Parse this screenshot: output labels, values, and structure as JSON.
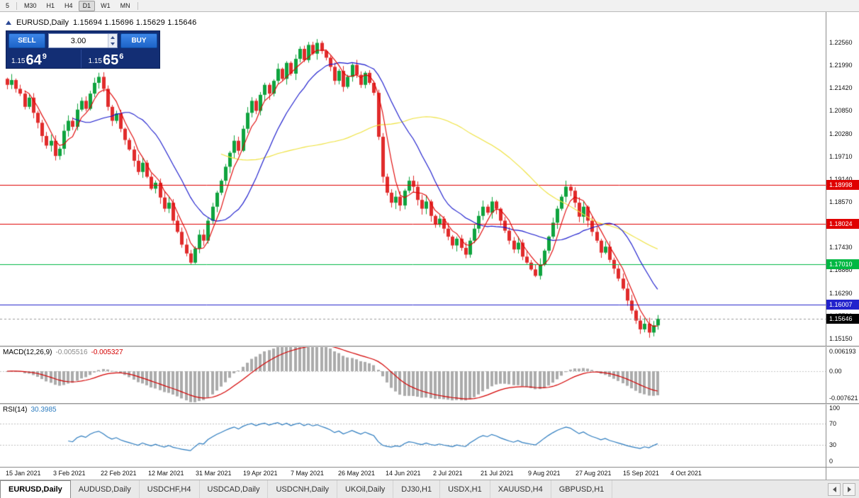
{
  "toolbar": {
    "timeframes": [
      "5",
      "M30",
      "H1",
      "H4",
      "D1",
      "W1",
      "MN"
    ],
    "active": "D1"
  },
  "chart_header": {
    "symbol_period": "EURUSD,Daily",
    "ohlc": "1.15694 1.15696 1.15629 1.15646"
  },
  "trade_panel": {
    "sell_label": "SELL",
    "buy_label": "BUY",
    "volume": "3.00",
    "bid_prefix": "1.15",
    "bid_big": "64",
    "bid_sup": "9",
    "ask_prefix": "1.15",
    "ask_big": "65",
    "ask_sup": "6"
  },
  "price_axis": {
    "ticks": [
      {
        "label": "1.22560",
        "value": 1.2256
      },
      {
        "label": "1.21990",
        "value": 1.2199
      },
      {
        "label": "1.21420",
        "value": 1.2142
      },
      {
        "label": "1.20850",
        "value": 1.2085
      },
      {
        "label": "1.20280",
        "value": 1.2028
      },
      {
        "label": "1.19710",
        "value": 1.1971
      },
      {
        "label": "1.19140",
        "value": 1.1914
      },
      {
        "label": "1.18570",
        "value": 1.1857
      },
      {
        "label": "1.18000",
        "value": 1.18
      },
      {
        "label": "1.17430",
        "value": 1.1743
      },
      {
        "label": "1.16860",
        "value": 1.1686
      },
      {
        "label": "1.16290",
        "value": 1.1629
      },
      {
        "label": "1.15720",
        "value": 1.1572
      },
      {
        "label": "1.15150",
        "value": 1.1515
      }
    ]
  },
  "levels": [
    {
      "label": "1.18998",
      "value": 1.18998,
      "color": "#e00000",
      "text": "#ffffff"
    },
    {
      "label": "1.18024",
      "value": 1.18024,
      "color": "#e00000",
      "text": "#ffffff"
    },
    {
      "label": "1.17010",
      "value": 1.1701,
      "color": "#00b843",
      "text": "#ffffff"
    },
    {
      "label": "1.16007",
      "value": 1.16007,
      "color": "#2222cc",
      "text": "#ffffff"
    }
  ],
  "current_price": {
    "label": "1.15646",
    "value": 1.15646,
    "color": "#000000",
    "text": "#ffffff"
  },
  "macd": {
    "name": "MACD(12,26,9)",
    "main_value": "-0.005516",
    "signal_value": "-0.005327",
    "axis": [
      {
        "label": "0.006193",
        "value": 0.006193
      },
      {
        "label": "0.00",
        "value": 0
      },
      {
        "label": "-0.007621",
        "value": -0.007621
      }
    ],
    "hist_color": "#ababab",
    "signal_color": "#d40000"
  },
  "rsi": {
    "name": "RSI(14)",
    "value": "30.3985",
    "axis": [
      {
        "label": "100",
        "value": 100
      },
      {
        "label": "70",
        "value": 70
      },
      {
        "label": "30",
        "value": 30
      },
      {
        "label": "0",
        "value": 0
      }
    ],
    "color": "#2b7bbf",
    "guide_levels": [
      70,
      30
    ]
  },
  "time_axis": {
    "labels": [
      "15 Jan 2021",
      "3 Feb 2021",
      "22 Feb 2021",
      "12 Mar 2021",
      "31 Mar 2021",
      "19 Apr 2021",
      "7 May 2021",
      "26 May 2021",
      "14 Jun 2021",
      "2 Jul 2021",
      "21 Jul 2021",
      "9 Aug 2021",
      "27 Aug 2021",
      "15 Sep 2021",
      "4 Oct 2021"
    ]
  },
  "tabs": {
    "items": [
      "EURUSD,Daily",
      "AUDUSD,Daily",
      "USDCHF,H4",
      "USDCAD,Daily",
      "USDCNH,Daily",
      "UKOil,Daily",
      "DJ30,H1",
      "USDX,H1",
      "XAUUSD,H4",
      "GBPUSD,H1"
    ],
    "active_index": 0
  },
  "chart_data": {
    "type": "candlestick",
    "symbol": "EURUSD",
    "period": "Daily",
    "price_max": 1.23322,
    "price_min": 1.14971,
    "bar_start": 10,
    "bar_step": 6.16,
    "body_width": 4,
    "candle_colors": {
      "up": "#0fa33e",
      "down": "#e12b2b"
    },
    "ma_periods": {
      "red": 5,
      "blue": 16,
      "yellow": 50
    },
    "ma_colors": {
      "red": "#e00000",
      "blue": "#1414cc",
      "yellow": "#efe23a"
    },
    "wick": {
      "base": 0.0003,
      "extra": 0.0013
    },
    "macd_zero_frac": 0.43,
    "macd_scale": 5000,
    "closes": [
      1.215,
      1.2162,
      1.214,
      1.2128,
      1.2095,
      1.2118,
      1.208,
      1.2055,
      1.2022,
      1.1998,
      1.201,
      1.1972,
      1.199,
      1.2035,
      1.206,
      1.2045,
      1.2088,
      1.211,
      1.209,
      1.2128,
      1.2155,
      1.217,
      1.214,
      1.2095,
      1.206,
      1.2078,
      1.204,
      1.2012,
      1.1988,
      1.196,
      1.1932,
      1.1955,
      1.192,
      1.189,
      1.1905,
      1.1868,
      1.184,
      1.1855,
      1.181,
      1.1782,
      1.175,
      1.1728,
      1.1705,
      1.174,
      1.1775,
      1.176,
      1.181,
      1.1845,
      1.188,
      1.191,
      1.1945,
      1.198,
      1.201,
      1.1985,
      1.204,
      1.208,
      1.211,
      1.2085,
      1.2125,
      1.215,
      1.2128,
      1.216,
      1.219,
      1.2165,
      1.2205,
      1.2178,
      1.2215,
      1.224,
      1.2212,
      1.225,
      1.2228,
      1.2255,
      1.2235,
      1.2218,
      1.2195,
      1.216,
      1.2185,
      1.2145,
      1.217,
      1.22,
      1.2175,
      1.215,
      1.218,
      1.2155,
      1.213,
      1.202,
      1.192,
      1.188,
      1.1855,
      1.187,
      1.1848,
      1.1885,
      1.191,
      1.1895,
      1.1862,
      1.184,
      1.1858,
      1.1822,
      1.18,
      1.1815,
      1.179,
      1.177,
      1.1748,
      1.1765,
      1.1742,
      1.1725,
      1.176,
      1.179,
      1.1822,
      1.1845,
      1.183,
      1.1858,
      1.184,
      1.181,
      1.1785,
      1.176,
      1.1738,
      1.1755,
      1.172,
      1.1705,
      1.1688,
      1.1672,
      1.17,
      1.1735,
      1.177,
      1.1805,
      1.184,
      1.187,
      1.1895,
      1.1885,
      1.1855,
      1.182,
      1.1845,
      1.181,
      1.1782,
      1.176,
      1.173,
      1.1745,
      1.1712,
      1.169,
      1.1665,
      1.164,
      1.161,
      1.1585,
      1.156,
      1.1538,
      1.1552,
      1.153,
      1.1548,
      1.15646
    ]
  }
}
